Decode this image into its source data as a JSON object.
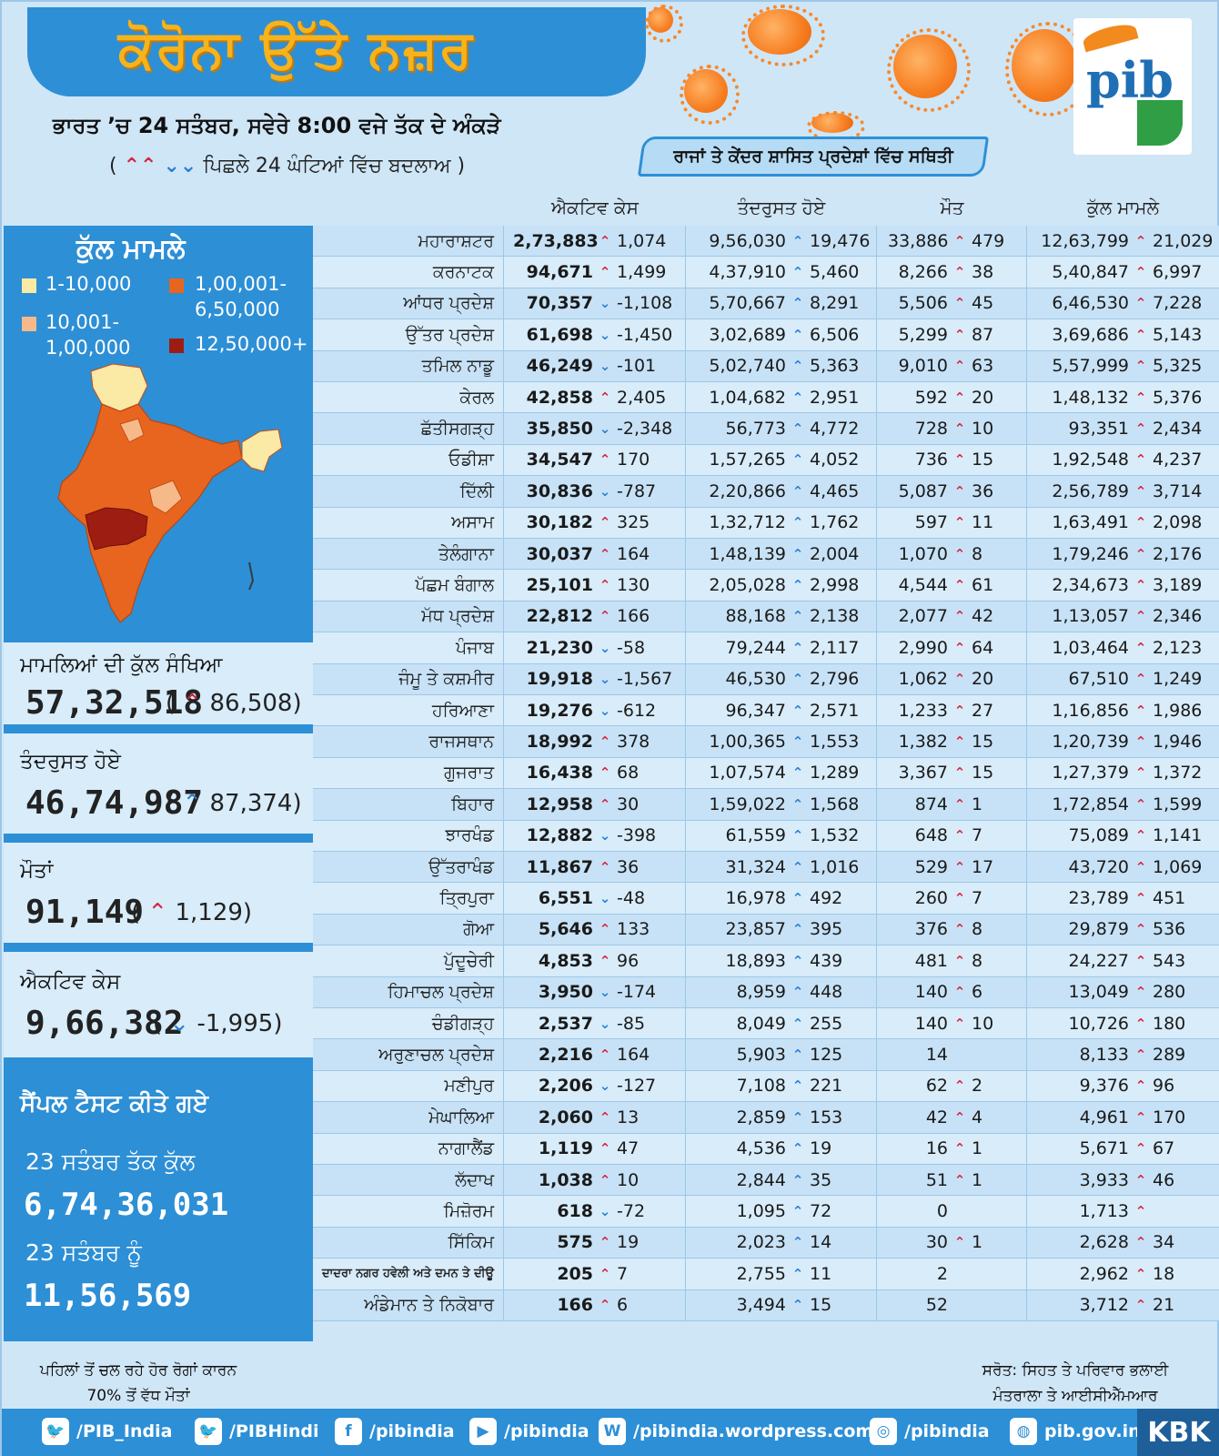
{
  "header": {
    "title": "ਕੋਰੋਨਾ ਉੱਤੇ ਨਜ਼ਰ",
    "subtitle": "ਭਾਰਤ ’ਚ 24 ਸਤੰਬਰ, ਸਵੇਰੇ 8:00 ਵਜੇ ਤੱਕ ਦੇ ਅੰਕੜੇ",
    "change_note": "ਪਿਛਲੇ 24 ਘੰਟਿਆਂ ਵਿੱਚ ਬਦਲਾਅ",
    "region_heading": "ਰਾਜਾਂ ਤੇ ਕੇਂਦਰ ਸ਼ਾਸਿਤ ਪ੍ਰਦੇਸ਼ਾਂ ਵਿੱਚ ਸਥਿਤੀ",
    "logo_text": "pib"
  },
  "colors": {
    "banner": "#2d8fd6",
    "title": "#f7b31c",
    "up_arrow": "#d7263d",
    "down_arrow": "#2a7fd1",
    "recovery_arrow": "#2a7fd1"
  },
  "table": {
    "columns": [
      "ਐਕਟਿਵ ਕੇਸ",
      "ਤੰਦਰੁਸਤ ਹੋਏ",
      "ਮੌਤ",
      "ਕੁੱਲ ਮਾਮਲੇ"
    ],
    "rows": [
      {
        "state": "ਮਹਾਰਾਸ਼ਟਰ",
        "active": "2,73,883",
        "active_dir": "up",
        "active_chg": "1,074",
        "rec": "9,56,030",
        "rec_chg": "19,476",
        "death": "33,886",
        "death_chg": "479",
        "total": "12,63,799",
        "total_chg": "21,029"
      },
      {
        "state": "ਕਰਨਾਟਕ",
        "active": "94,671",
        "active_dir": "up",
        "active_chg": "1,499",
        "rec": "4,37,910",
        "rec_chg": "5,460",
        "death": "8,266",
        "death_chg": "38",
        "total": "5,40,847",
        "total_chg": "6,997"
      },
      {
        "state": "ਆਂਧਰ ਪ੍ਰਦੇਸ਼",
        "active": "70,357",
        "active_dir": "down",
        "active_chg": "-1,108",
        "rec": "5,70,667",
        "rec_chg": "8,291",
        "death": "5,506",
        "death_chg": "45",
        "total": "6,46,530",
        "total_chg": "7,228"
      },
      {
        "state": "ਉੱਤਰ ਪ੍ਰਦੇਸ਼",
        "active": "61,698",
        "active_dir": "down",
        "active_chg": "-1,450",
        "rec": "3,02,689",
        "rec_chg": "6,506",
        "death": "5,299",
        "death_chg": "87",
        "total": "3,69,686",
        "total_chg": "5,143"
      },
      {
        "state": "ਤਮਿਲ ਨਾਡੂ",
        "active": "46,249",
        "active_dir": "down",
        "active_chg": "-101",
        "rec": "5,02,740",
        "rec_chg": "5,363",
        "death": "9,010",
        "death_chg": "63",
        "total": "5,57,999",
        "total_chg": "5,325"
      },
      {
        "state": "ਕੇਰਲ",
        "active": "42,858",
        "active_dir": "up",
        "active_chg": "2,405",
        "rec": "1,04,682",
        "rec_chg": "2,951",
        "death": "592",
        "death_chg": "20",
        "total": "1,48,132",
        "total_chg": "5,376"
      },
      {
        "state": "ਛੱਤੀਸਗੜ੍ਹ",
        "active": "35,850",
        "active_dir": "down",
        "active_chg": "-2,348",
        "rec": "56,773",
        "rec_chg": "4,772",
        "death": "728",
        "death_chg": "10",
        "total": "93,351",
        "total_chg": "2,434"
      },
      {
        "state": "ਓਡੀਸ਼ਾ",
        "active": "34,547",
        "active_dir": "up",
        "active_chg": "170",
        "rec": "1,57,265",
        "rec_chg": "4,052",
        "death": "736",
        "death_chg": "15",
        "total": "1,92,548",
        "total_chg": "4,237"
      },
      {
        "state": "ਦਿੱਲੀ",
        "active": "30,836",
        "active_dir": "down",
        "active_chg": "-787",
        "rec": "2,20,866",
        "rec_chg": "4,465",
        "death": "5,087",
        "death_chg": "36",
        "total": "2,56,789",
        "total_chg": "3,714"
      },
      {
        "state": "ਅਸਾਮ",
        "active": "30,182",
        "active_dir": "up",
        "active_chg": "325",
        "rec": "1,32,712",
        "rec_chg": "1,762",
        "death": "597",
        "death_chg": "11",
        "total": "1,63,491",
        "total_chg": "2,098"
      },
      {
        "state": "ਤੇਲੰਗਾਨਾ",
        "active": "30,037",
        "active_dir": "up",
        "active_chg": "164",
        "rec": "1,48,139",
        "rec_chg": "2,004",
        "death": "1,070",
        "death_chg": "8",
        "total": "1,79,246",
        "total_chg": "2,176"
      },
      {
        "state": "ਪੱਛਮ ਬੰਗਾਲ",
        "active": "25,101",
        "active_dir": "up",
        "active_chg": "130",
        "rec": "2,05,028",
        "rec_chg": "2,998",
        "death": "4,544",
        "death_chg": "61",
        "total": "2,34,673",
        "total_chg": "3,189"
      },
      {
        "state": "ਮੱਧ ਪ੍ਰਦੇਸ਼",
        "active": "22,812",
        "active_dir": "up",
        "active_chg": "166",
        "rec": "88,168",
        "rec_chg": "2,138",
        "death": "2,077",
        "death_chg": "42",
        "total": "1,13,057",
        "total_chg": "2,346"
      },
      {
        "state": "ਪੰਜਾਬ",
        "active": "21,230",
        "active_dir": "down",
        "active_chg": "-58",
        "rec": "79,244",
        "rec_chg": "2,117",
        "death": "2,990",
        "death_chg": "64",
        "total": "1,03,464",
        "total_chg": "2,123"
      },
      {
        "state": "ਜੰਮੂ ਤੇ ਕਸ਼ਮੀਰ",
        "active": "19,918",
        "active_dir": "down",
        "active_chg": "-1,567",
        "rec": "46,530",
        "rec_chg": "2,796",
        "death": "1,062",
        "death_chg": "20",
        "total": "67,510",
        "total_chg": "1,249"
      },
      {
        "state": "ਹਰਿਆਣਾ",
        "active": "19,276",
        "active_dir": "down",
        "active_chg": "-612",
        "rec": "96,347",
        "rec_chg": "2,571",
        "death": "1,233",
        "death_chg": "27",
        "total": "1,16,856",
        "total_chg": "1,986"
      },
      {
        "state": "ਰਾਜਸਥਾਨ",
        "active": "18,992",
        "active_dir": "up",
        "active_chg": "378",
        "rec": "1,00,365",
        "rec_chg": "1,553",
        "death": "1,382",
        "death_chg": "15",
        "total": "1,20,739",
        "total_chg": "1,946"
      },
      {
        "state": "ਗੁਜਰਾਤ",
        "active": "16,438",
        "active_dir": "up",
        "active_chg": "68",
        "rec": "1,07,574",
        "rec_chg": "1,289",
        "death": "3,367",
        "death_chg": "15",
        "total": "1,27,379",
        "total_chg": "1,372"
      },
      {
        "state": "ਬਿਹਾਰ",
        "active": "12,958",
        "active_dir": "up",
        "active_chg": "30",
        "rec": "1,59,022",
        "rec_chg": "1,568",
        "death": "874",
        "death_chg": "1",
        "total": "1,72,854",
        "total_chg": "1,599"
      },
      {
        "state": "ਝਾਰਖੰਡ",
        "active": "12,882",
        "active_dir": "down",
        "active_chg": "-398",
        "rec": "61,559",
        "rec_chg": "1,532",
        "death": "648",
        "death_chg": "7",
        "total": "75,089",
        "total_chg": "1,141"
      },
      {
        "state": "ਉੱਤਰਾਖੰਡ",
        "active": "11,867",
        "active_dir": "up",
        "active_chg": "36",
        "rec": "31,324",
        "rec_chg": "1,016",
        "death": "529",
        "death_chg": "17",
        "total": "43,720",
        "total_chg": "1,069"
      },
      {
        "state": "ਤ੍ਰਿਪੁਰਾ",
        "active": "6,551",
        "active_dir": "down",
        "active_chg": "-48",
        "rec": "16,978",
        "rec_chg": "492",
        "death": "260",
        "death_chg": "7",
        "total": "23,789",
        "total_chg": "451"
      },
      {
        "state": "ਗੋਆ",
        "active": "5,646",
        "active_dir": "up",
        "active_chg": "133",
        "rec": "23,857",
        "rec_chg": "395",
        "death": "376",
        "death_chg": "8",
        "total": "29,879",
        "total_chg": "536"
      },
      {
        "state": "ਪੁੱਦੂਚੇਰੀ",
        "active": "4,853",
        "active_dir": "up",
        "active_chg": "96",
        "rec": "18,893",
        "rec_chg": "439",
        "death": "481",
        "death_chg": "8",
        "total": "24,227",
        "total_chg": "543"
      },
      {
        "state": "ਹਿਮਾਚਲ ਪ੍ਰਦੇਸ਼",
        "active": "3,950",
        "active_dir": "down",
        "active_chg": "-174",
        "rec": "8,959",
        "rec_chg": "448",
        "death": "140",
        "death_chg": "6",
        "total": "13,049",
        "total_chg": "280"
      },
      {
        "state": "ਚੰਡੀਗੜ੍ਹ",
        "active": "2,537",
        "active_dir": "down",
        "active_chg": "-85",
        "rec": "8,049",
        "rec_chg": "255",
        "death": "140",
        "death_chg": "10",
        "total": "10,726",
        "total_chg": "180"
      },
      {
        "state": "ਅਰੁਣਾਚਲ ਪ੍ਰਦੇਸ਼",
        "active": "2,216",
        "active_dir": "up",
        "active_chg": "164",
        "rec": "5,903",
        "rec_chg": "125",
        "death": "14",
        "death_chg": "",
        "total": "8,133",
        "total_chg": "289"
      },
      {
        "state": "ਮਣੀਪੁਰ",
        "active": "2,206",
        "active_dir": "down",
        "active_chg": "-127",
        "rec": "7,108",
        "rec_chg": "221",
        "death": "62",
        "death_chg": "2",
        "total": "9,376",
        "total_chg": "96"
      },
      {
        "state": "ਮੇਘਾਲਿਆ",
        "active": "2,060",
        "active_dir": "up",
        "active_chg": "13",
        "rec": "2,859",
        "rec_chg": "153",
        "death": "42",
        "death_chg": "4",
        "total": "4,961",
        "total_chg": "170"
      },
      {
        "state": "ਨਾਗਾਲੈਂਡ",
        "active": "1,119",
        "active_dir": "up",
        "active_chg": "47",
        "rec": "4,536",
        "rec_chg": "19",
        "death": "16",
        "death_chg": "1",
        "total": "5,671",
        "total_chg": "67"
      },
      {
        "state": "ਲੱਦਾਖ",
        "active": "1,038",
        "active_dir": "up",
        "active_chg": "10",
        "rec": "2,844",
        "rec_chg": "35",
        "death": "51",
        "death_chg": "1",
        "total": "3,933",
        "total_chg": "46"
      },
      {
        "state": "ਮਿਜ਼ੋਰਮ",
        "active": "618",
        "active_dir": "down",
        "active_chg": "-72",
        "rec": "1,095",
        "rec_chg": "72",
        "death": "0",
        "death_chg": "",
        "total": "1,713",
        "total_chg": ""
      },
      {
        "state": "ਸਿੱਕਿਮ",
        "active": "575",
        "active_dir": "up",
        "active_chg": "19",
        "rec": "2,023",
        "rec_chg": "14",
        "death": "30",
        "death_chg": "1",
        "total": "2,628",
        "total_chg": "34"
      },
      {
        "state": "ਦਾਦਰਾ ਨਗਰ ਹਵੇਲੀ ਅਤੇ ਦਮਨ ਤੇ ਦੀਊ",
        "active": "205",
        "active_dir": "up",
        "active_chg": "7",
        "rec": "2,755",
        "rec_chg": "11",
        "death": "2",
        "death_chg": "",
        "total": "2,962",
        "total_chg": "18"
      },
      {
        "state": "ਅੰਡੇਮਾਨ ਤੇ ਨਿਕੋਬਾਰ",
        "active": "166",
        "active_dir": "up",
        "active_chg": "6",
        "rec": "3,494",
        "rec_chg": "15",
        "death": "52",
        "death_chg": "",
        "total": "3,712",
        "total_chg": "21"
      }
    ]
  },
  "map": {
    "title": "ਕੁੱਲ ਮਾਮਲੇ",
    "legend": [
      {
        "label": "1-10,000",
        "color": "#fbe9a6"
      },
      {
        "label": "10,001- 1,00,000",
        "color": "#f6b98a"
      },
      {
        "label": "1,00,001- 6,50,000",
        "color": "#e8651f"
      },
      {
        "label": "12,50,000+",
        "color": "#9d1d12"
      }
    ]
  },
  "summary": {
    "total_label": "ਮਾਮਲਿਆਂ ਦੀ ਕੁੱਲ ਸੰਖਿਆ",
    "total_value": "57,32,518",
    "total_change": "86,508",
    "recovered_label": "ਤੰਦਰੁਸਤ ਹੋਏ",
    "recovered_value": "46,74,987",
    "recovered_change": "87,374",
    "deaths_label": "ਮੌਤਾਂ",
    "deaths_value": "91,149",
    "deaths_change": "1,129",
    "active_label": "ਐਕਟਿਵ ਕੇਸ",
    "active_value": "9,66,382",
    "active_change": "-1,995"
  },
  "tests": {
    "title": "ਸੈਂਪਲ ਟੈਸਟ ਕੀਤੇ ਗਏ",
    "cum_label": "23 ਸਤੰਬਰ ਤੱਕ ਕੁੱਲ",
    "cum_value": "6,74,36,031",
    "day_label": "23 ਸਤੰਬਰ ਨੂੰ",
    "day_value": "11,56,569"
  },
  "footer": {
    "note_left": "ਪਹਿਲਾਂ ਤੋਂ ਚਲ ਰਹੇ ਹੋਰ ਰੋਗਾਂ ਕਾਰਨ 70% ਤੋਂ ਵੱਧ ਮੌਤਾਂ",
    "note_right": "ਸਰੋਤ: ਸਿਹਤ ਤੇ ਪਰਿਵਾਰ ਭਲਾਈ ਮੰਤਰਾਲਾ ਤੇ ਆਈਸੀਐੱਮਆਰ",
    "social": [
      {
        "icon": "twitter-icon",
        "glyph": "🐦",
        "label": "/PIB_India"
      },
      {
        "icon": "twitter-icon",
        "glyph": "🐦",
        "label": "/PIBHindi"
      },
      {
        "icon": "facebook-icon",
        "glyph": "f",
        "label": "/pibindia"
      },
      {
        "icon": "youtube-icon",
        "glyph": "▶",
        "label": "/pibindia"
      },
      {
        "icon": "wordpress-icon",
        "glyph": "W",
        "label": "/pibindia.wordpress.com"
      },
      {
        "icon": "instagram-icon",
        "glyph": "◎",
        "label": "/pibindia"
      },
      {
        "icon": "globe-icon",
        "glyph": "◍",
        "label": "pib.gov.in"
      }
    ],
    "brand": "KBK"
  }
}
